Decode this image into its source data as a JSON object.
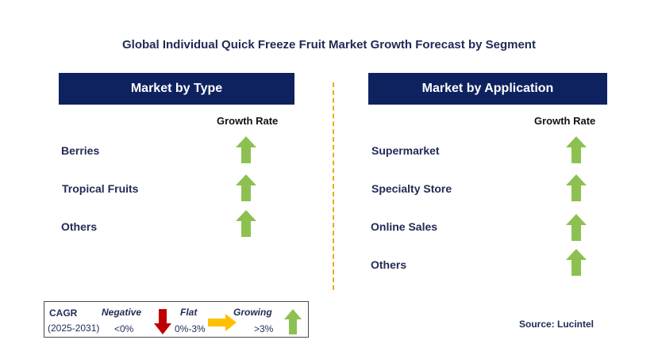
{
  "title": "Global Individual Quick Freeze Fruit Market Growth Forecast by Segment",
  "left_panel": {
    "header": "Market by Type",
    "growth_label": "Growth Rate",
    "items": [
      {
        "label": "Berries",
        "trend": "growing"
      },
      {
        "label": "Tropical Fruits",
        "trend": "growing"
      },
      {
        "label": "Others",
        "trend": "growing"
      }
    ]
  },
  "right_panel": {
    "header": "Market by Application",
    "growth_label": "Growth Rate",
    "items": [
      {
        "label": "Supermarket",
        "trend": "growing"
      },
      {
        "label": "Specialty Store",
        "trend": "growing"
      },
      {
        "label": "Online Sales",
        "trend": "growing"
      },
      {
        "label": "Others",
        "trend": "growing"
      }
    ]
  },
  "legend": {
    "cagr_label": "CAGR",
    "period": "(2025-2031)",
    "negative_label": "Negative",
    "negative_range": "<0%",
    "flat_label": "Flat",
    "flat_range": "0%-3%",
    "growing_label": "Growing",
    "growing_range": ">3%"
  },
  "source": "Source: Lucintel",
  "colors": {
    "header_bg": "#0e2260",
    "growing_arrow": "#8cc152",
    "negative_arrow": "#c00000",
    "flat_arrow": "#ffc000",
    "divider": "#f0a81e"
  },
  "icons": {
    "growing": "up-arrow-icon",
    "negative": "down-arrow-icon",
    "flat": "right-arrow-icon"
  }
}
